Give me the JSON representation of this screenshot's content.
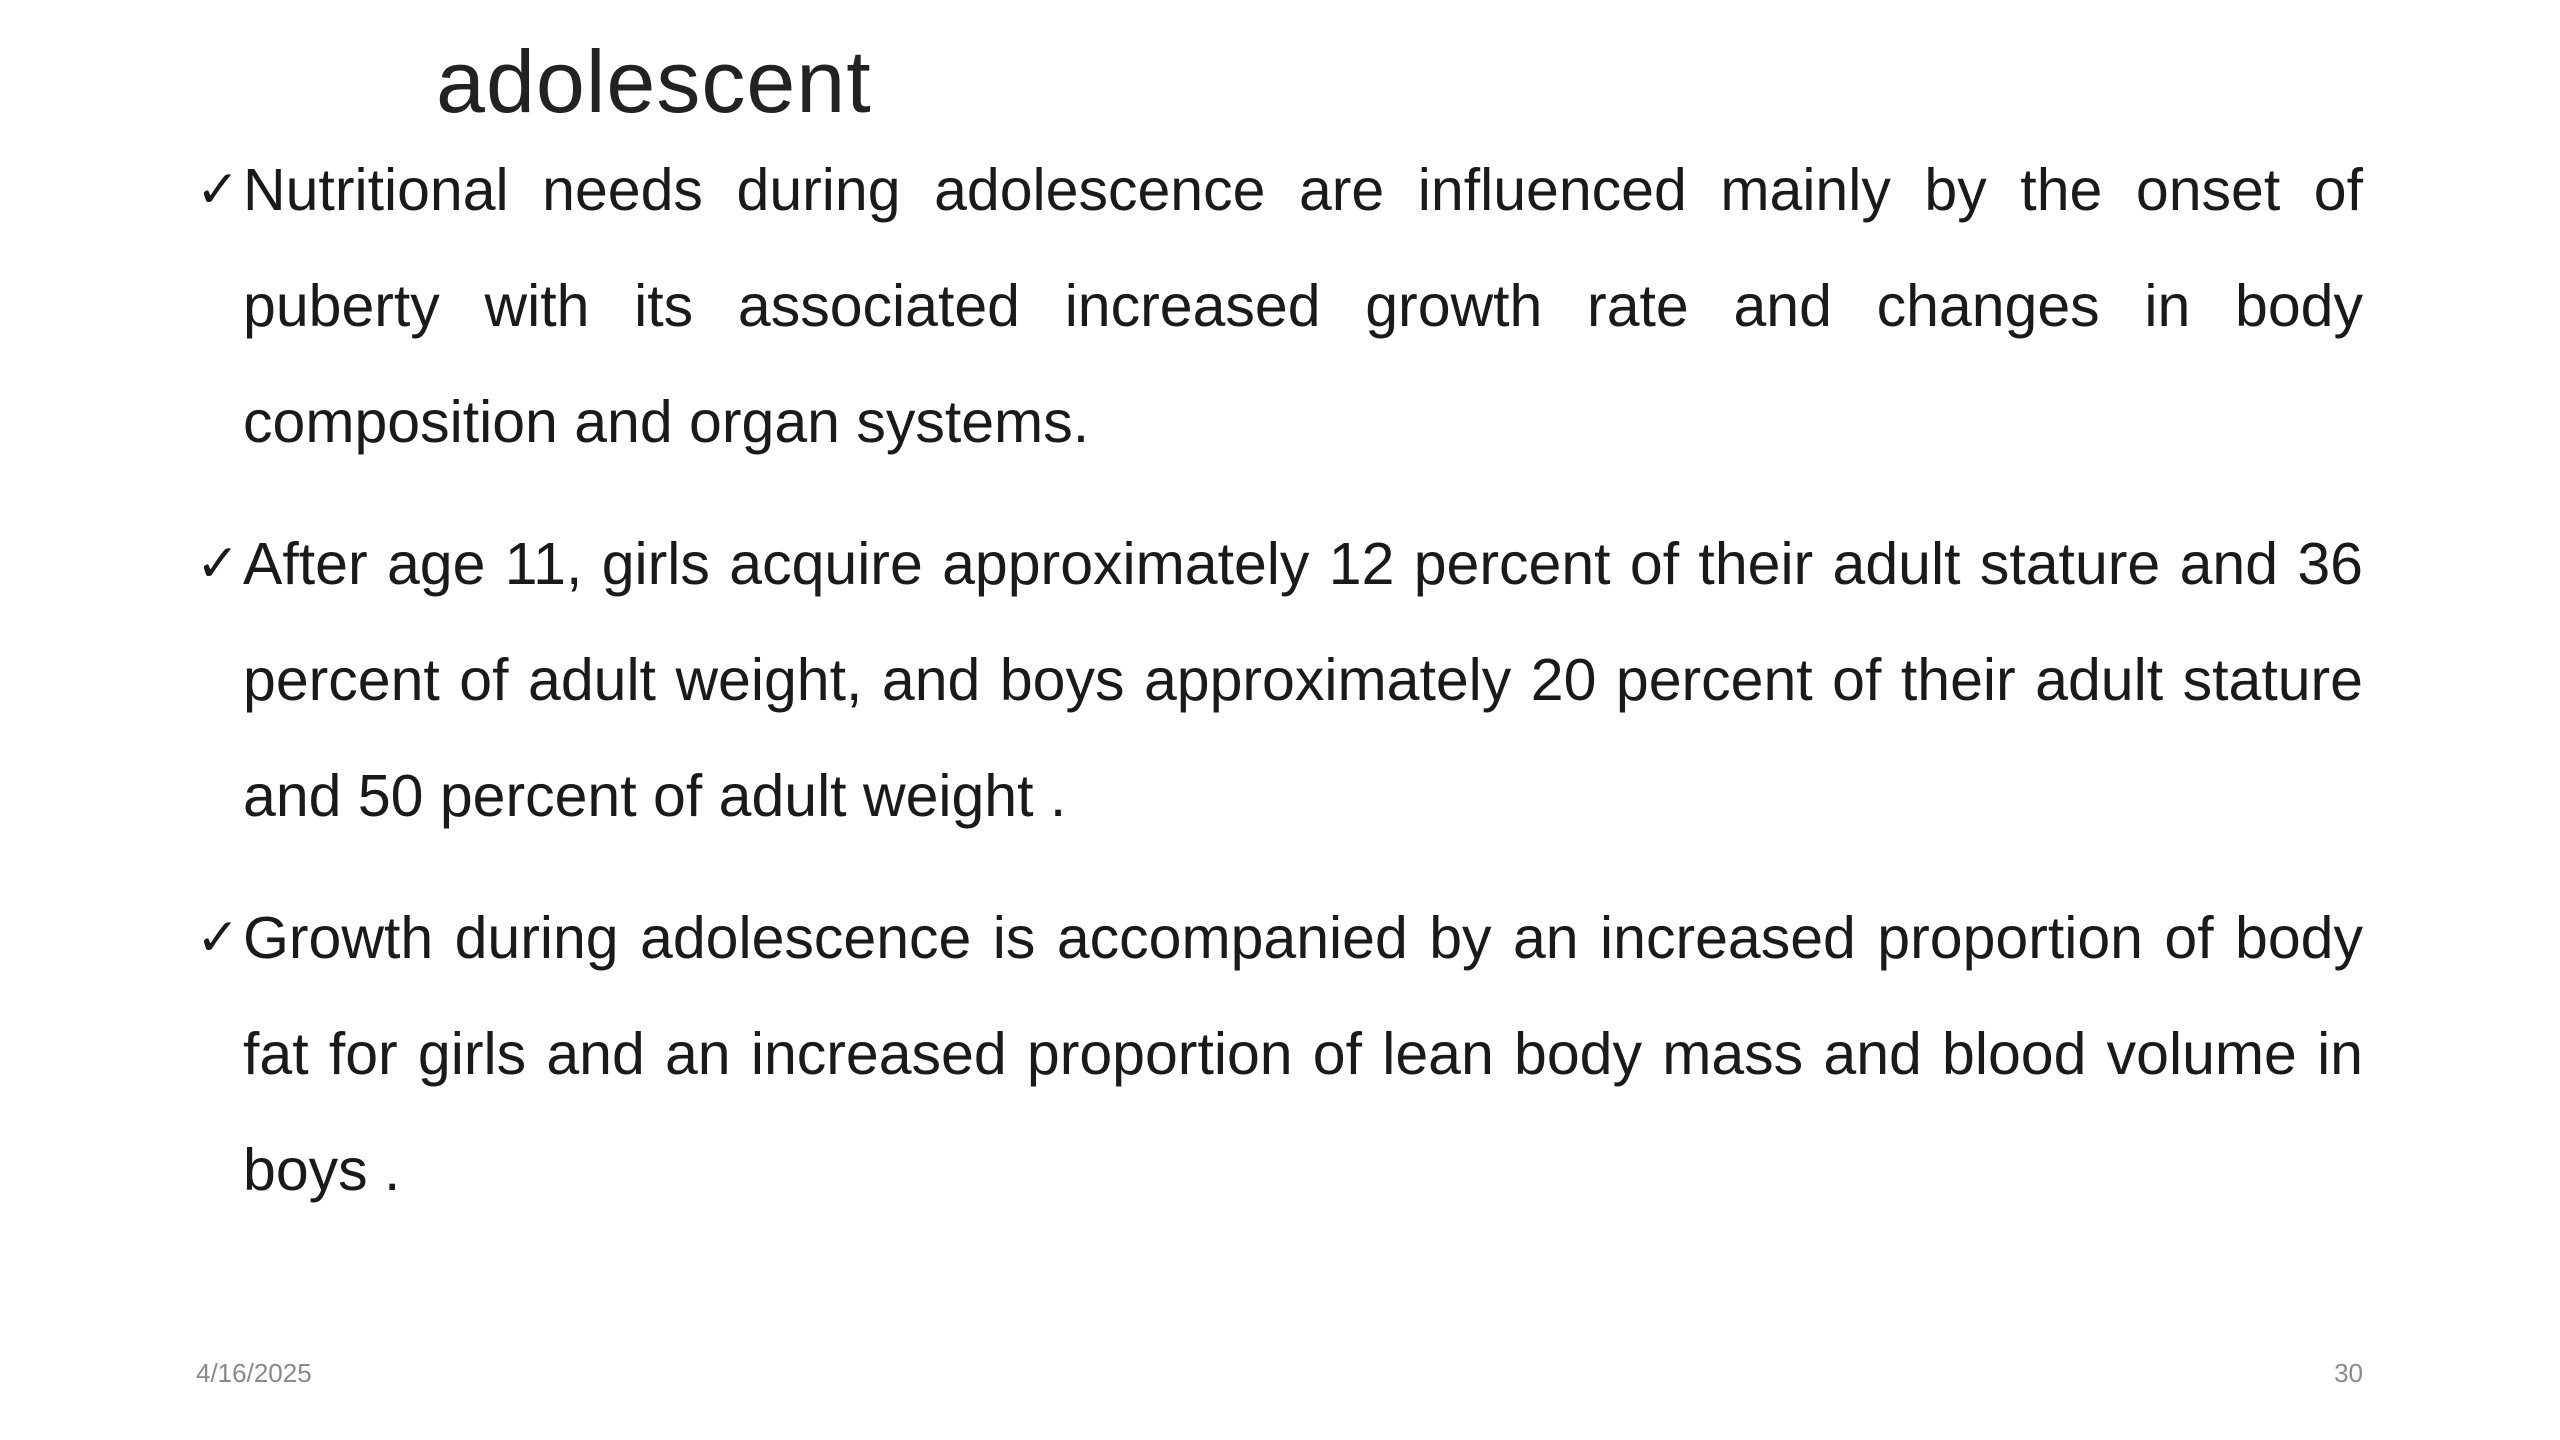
{
  "slide": {
    "title": "adolescent",
    "bullets": [
      "Nutritional needs during adolescence are influenced mainly by the onset of puberty with its associated increased growth rate and changes in body composition and organ systems.",
      "After age 11, girls acquire approximately 12 percent of their adult stature and 36 percent of adult weight, and boys approximately 20 percent of their adult stature and 50 percent of adult weight .",
      "Growth during adolescence is accompanied by an increased proportion of body fat for girls and an increased proportion of lean body mass and blood volume in boys ."
    ],
    "footer": {
      "date": "4/16/2025",
      "page": "30"
    }
  }
}
